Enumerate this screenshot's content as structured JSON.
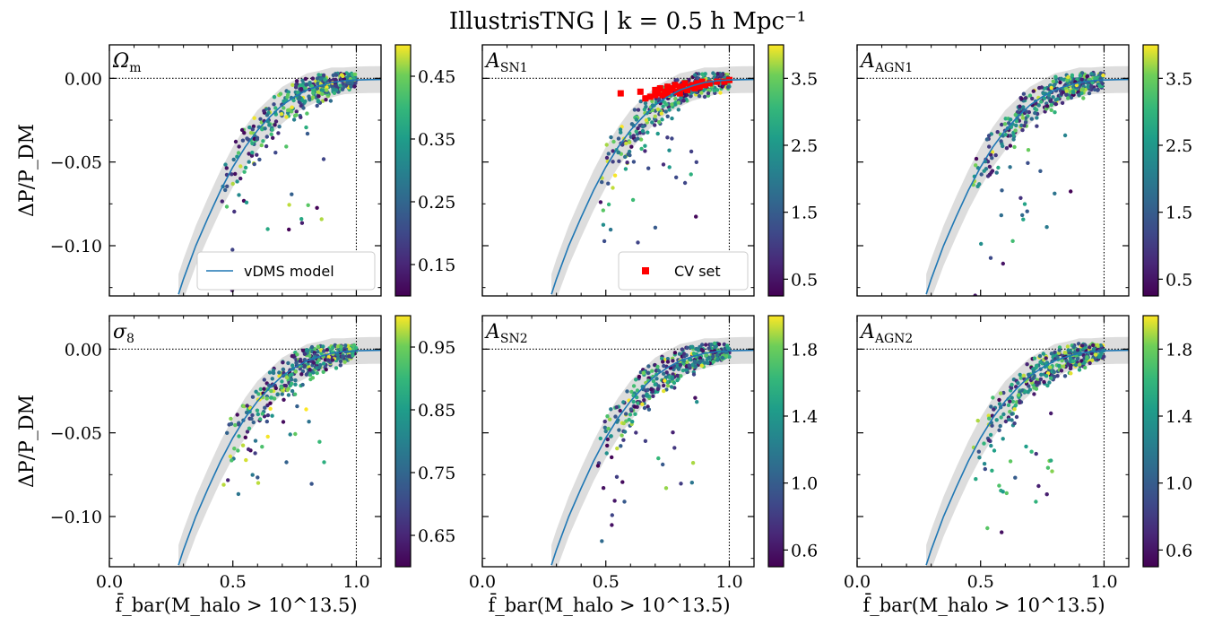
{
  "title": "IllustrisTNG | k = 0.5 h Mpc⁻¹",
  "shared": {
    "xlabel": "f̄_bar(M_halo > 10^13.5)",
    "ylabel": "ΔP/P_DM",
    "xlim": [
      0.0,
      1.1
    ],
    "ylim": [
      -0.13,
      0.02
    ],
    "xticks": [
      0.0,
      0.5,
      1.0
    ],
    "xtick_labels": [
      "0.0",
      "0.5",
      "1.0"
    ],
    "yticks": [
      0.0,
      -0.05,
      -0.1
    ],
    "ytick_labels": [
      "0.00",
      "−0.05",
      "−0.10"
    ],
    "reference_lines": {
      "y": 0.0,
      "x": 1.0,
      "style": "dotted"
    },
    "model_curve": {
      "name": "vDMS model",
      "color": "#1f77b4",
      "band_color": "#dddddd",
      "x": [
        0.28,
        0.3,
        0.35,
        0.4,
        0.45,
        0.5,
        0.55,
        0.6,
        0.65,
        0.7,
        0.75,
        0.8,
        0.85,
        0.9,
        0.95,
        1.0,
        1.05,
        1.1
      ],
      "y": [
        -0.129,
        -0.12,
        -0.1,
        -0.083,
        -0.067,
        -0.053,
        -0.041,
        -0.031,
        -0.023,
        -0.016,
        -0.011,
        -0.007,
        -0.0045,
        -0.0025,
        -0.0015,
        -0.001,
        -0.0008,
        -0.0007
      ],
      "band_halfwidth": [
        0.012,
        0.012,
        0.012,
        0.012,
        0.012,
        0.012,
        0.012,
        0.012,
        0.011,
        0.011,
        0.01,
        0.01,
        0.009,
        0.009,
        0.008,
        0.008,
        0.008,
        0.008
      ]
    },
    "colormap": "viridis",
    "grid": false
  },
  "legends": {
    "model": {
      "label": "vDMS model"
    },
    "cv": {
      "label": "CV set",
      "color": "#ff0000"
    }
  },
  "chart_data": [
    {
      "type": "scatter",
      "panel_label": "Ωm",
      "label_main": "Ω",
      "label_sub": "m",
      "colorbar_range": [
        0.1,
        0.5
      ],
      "colorbar_ticks": [
        0.15,
        0.25,
        0.35,
        0.45
      ],
      "colorbar_tick_labels": [
        "0.15",
        "0.25",
        "0.35",
        "0.45"
      ],
      "show_model_legend": true,
      "seed": 11,
      "outlier_color_bias": 0.15
    },
    {
      "type": "scatter",
      "panel_label": "ASN1",
      "label_main": "A",
      "label_sub": "SN1",
      "colorbar_range": [
        0.25,
        4.0
      ],
      "colorbar_ticks": [
        0.5,
        1.5,
        2.5,
        3.5
      ],
      "colorbar_tick_labels": [
        "0.5",
        "1.5",
        "2.5",
        "3.5"
      ],
      "show_cv": true,
      "seed": 23,
      "outlier_color_bias": 0.15,
      "cv_points": {
        "x": [
          0.56,
          0.64,
          0.66,
          0.68,
          0.7,
          0.7,
          0.71,
          0.72,
          0.73,
          0.74,
          0.75,
          0.75,
          0.76,
          0.77,
          0.78,
          0.79,
          0.8,
          0.8,
          0.81,
          0.82,
          0.83,
          0.84,
          0.85,
          0.86,
          0.87,
          0.88,
          0.89,
          0.9,
          0.92,
          0.95,
          0.98,
          1.0
        ],
        "y": [
          -0.009,
          -0.008,
          -0.012,
          -0.011,
          -0.007,
          -0.01,
          -0.009,
          -0.006,
          -0.01,
          -0.008,
          -0.005,
          -0.009,
          -0.007,
          -0.006,
          -0.004,
          -0.008,
          -0.005,
          -0.009,
          -0.006,
          -0.003,
          -0.007,
          -0.005,
          -0.004,
          -0.006,
          -0.003,
          -0.005,
          -0.002,
          -0.004,
          -0.003,
          -0.002,
          -0.002,
          -0.001
        ]
      }
    },
    {
      "type": "scatter",
      "panel_label": "AAGN1",
      "label_main": "A",
      "label_sub": "AGN1",
      "colorbar_range": [
        0.25,
        4.0
      ],
      "colorbar_ticks": [
        0.5,
        1.5,
        2.5,
        3.5
      ],
      "colorbar_tick_labels": [
        "0.5",
        "1.5",
        "2.5",
        "3.5"
      ],
      "seed": 37,
      "outlier_color_bias": 0.3
    },
    {
      "type": "scatter",
      "panel_label": "σ8",
      "label_main": "σ",
      "label_sub": "8",
      "colorbar_range": [
        0.6,
        1.0
      ],
      "colorbar_ticks": [
        0.65,
        0.75,
        0.85,
        0.95
      ],
      "colorbar_tick_labels": [
        "0.65",
        "0.75",
        "0.85",
        "0.95"
      ],
      "seed": 41,
      "outlier_color_bias": 0.9
    },
    {
      "type": "scatter",
      "panel_label": "ASN2",
      "label_main": "A",
      "label_sub": "SN2",
      "colorbar_range": [
        0.5,
        2.0
      ],
      "colorbar_ticks": [
        0.6,
        1.0,
        1.4,
        1.8
      ],
      "colorbar_tick_labels": [
        "0.6",
        "1.0",
        "1.4",
        "1.8"
      ],
      "seed": 53,
      "outlier_color_bias": 0.2
    },
    {
      "type": "scatter",
      "panel_label": "AAGN2",
      "label_main": "A",
      "label_sub": "AGN2",
      "colorbar_range": [
        0.5,
        2.0
      ],
      "colorbar_ticks": [
        0.6,
        1.0,
        1.4,
        1.8
      ],
      "colorbar_tick_labels": [
        "0.6",
        "1.0",
        "1.4",
        "1.8"
      ],
      "seed": 67,
      "outlier_color_bias": 0.75
    }
  ]
}
